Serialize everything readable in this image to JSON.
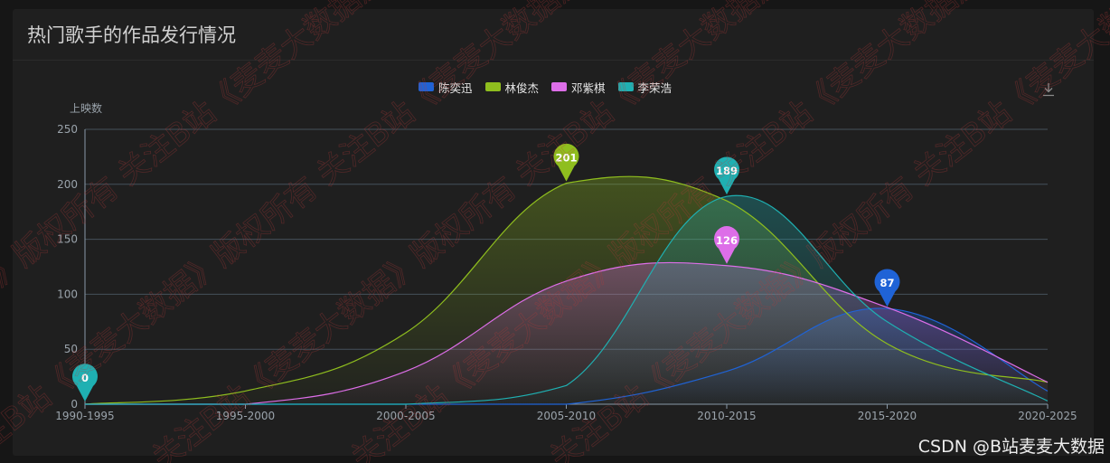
{
  "panel": {
    "title": "热门歌手的作品发行情况"
  },
  "watermark": {
    "text": "关注B站《麦麦大数据》版权所有"
  },
  "footer_credit": "CSDN @B站麦麦大数据",
  "toolbar": {
    "download_icon": "download-icon"
  },
  "chart_data": {
    "type": "area",
    "ylabel": "上映数",
    "ylim": [
      0,
      250
    ],
    "yticks": [
      0,
      50,
      100,
      150,
      200,
      250
    ],
    "categories": [
      "1990-1995",
      "1995-2000",
      "2000-2005",
      "2005-2010",
      "2010-2015",
      "2015-2020",
      "2020-2025"
    ],
    "grid": true,
    "legend_position": "top-center",
    "series": [
      {
        "name": "陈奕迅",
        "color": "#1f63d6",
        "values": [
          0,
          0,
          0,
          0,
          30,
          87,
          12
        ],
        "marker": {
          "category_index": 5,
          "value": 87
        }
      },
      {
        "name": "林俊杰",
        "color": "#8fbe1e",
        "values": [
          0,
          12,
          65,
          201,
          185,
          55,
          20
        ],
        "marker": {
          "category_index": 3,
          "value": 201
        }
      },
      {
        "name": "邓紫棋",
        "color": "#dd6ee8",
        "values": [
          0,
          0,
          30,
          112,
          126,
          88,
          20
        ],
        "marker": {
          "category_index": 4,
          "value": 126
        }
      },
      {
        "name": "李荣浩",
        "color": "#1fb0b2",
        "values": [
          0,
          0,
          0,
          17,
          189,
          75,
          3
        ],
        "marker": {
          "category_index": 0,
          "value": 0,
          "second_category_index": 4,
          "second_value": 189
        }
      }
    ]
  }
}
